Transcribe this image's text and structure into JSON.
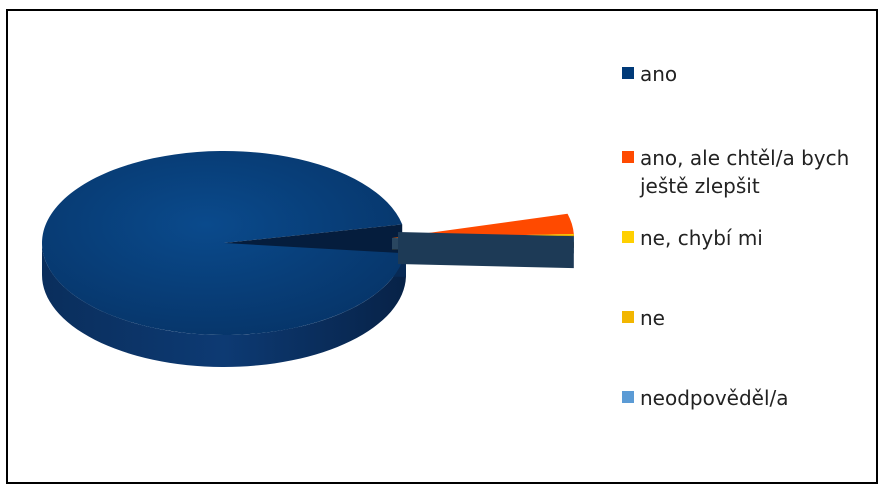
{
  "chart_data": {
    "type": "pie",
    "style": "3d-exploded",
    "title": "",
    "categories": [
      "ano",
      "ano, ale chtěl/a bych ještě zlepšit",
      "ne, chybí mi",
      "ne",
      "neodpověděl/a"
    ],
    "values": [
      89.5,
      7.5,
      0.5,
      0.5,
      2.0
    ],
    "unit": "%",
    "colors": [
      "#003A78",
      "#FF4A00",
      "#FFD000",
      "#F2B600",
      "#5B9BD5"
    ],
    "legend_position": "right"
  }
}
